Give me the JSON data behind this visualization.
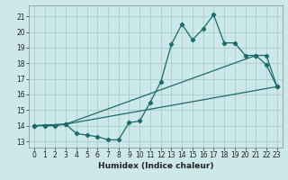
{
  "xlabel": "Humidex (Indice chaleur)",
  "bg_color": "#cce8e8",
  "grid_color": "#b0d0d0",
  "line_color": "#1a6b6b",
  "xlim": [
    -0.5,
    23.5
  ],
  "ylim": [
    12.6,
    21.7
  ],
  "yticks": [
    13,
    14,
    15,
    16,
    17,
    18,
    19,
    20,
    21
  ],
  "xticks": [
    0,
    1,
    2,
    3,
    4,
    5,
    6,
    7,
    8,
    9,
    10,
    11,
    12,
    13,
    14,
    15,
    16,
    17,
    18,
    19,
    20,
    21,
    22,
    23
  ],
  "line1_x": [
    0,
    1,
    2,
    3,
    4,
    5,
    6,
    7,
    8,
    9,
    10,
    11,
    12,
    13,
    14,
    15,
    16,
    17,
    18,
    19,
    20,
    21,
    22,
    23
  ],
  "line1_y": [
    14.0,
    14.0,
    14.0,
    14.1,
    13.5,
    13.4,
    13.3,
    13.1,
    13.1,
    14.2,
    14.3,
    15.5,
    16.8,
    19.2,
    20.5,
    19.5,
    20.2,
    21.1,
    19.3,
    19.3,
    18.5,
    18.5,
    17.9,
    16.5
  ],
  "line2_x": [
    0,
    3,
    23
  ],
  "line2_y": [
    14.0,
    14.1,
    16.5
  ],
  "line3_x": [
    0,
    3,
    21,
    22,
    23
  ],
  "line3_y": [
    14.0,
    14.1,
    18.5,
    18.5,
    16.5
  ],
  "xlabel_fontsize": 6.5,
  "tick_fontsize": 5.5
}
